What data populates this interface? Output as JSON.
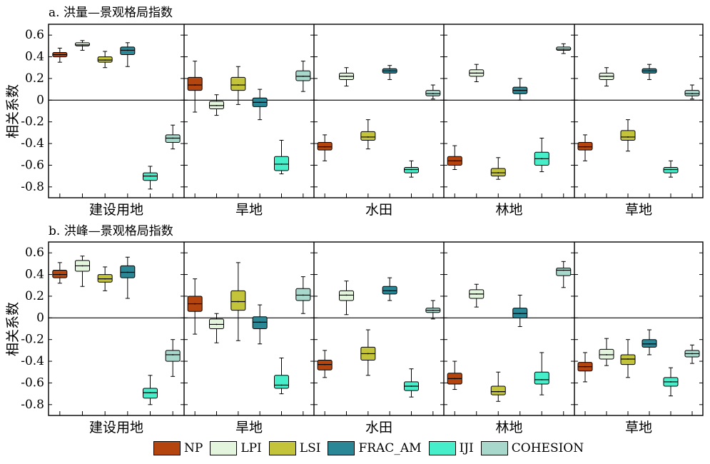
{
  "colors": {
    "NP": "#B5450F",
    "LPI": "#E4F5DE",
    "LSI": "#C3C43A",
    "FRAC_AM": "#2A8795",
    "IJI": "#46EEC9",
    "COHESION": "#A8D7CB"
  },
  "legend": [
    {
      "key": "NP",
      "label": "NP"
    },
    {
      "key": "LPI",
      "label": "LPI"
    },
    {
      "key": "LSI",
      "label": "LSI"
    },
    {
      "key": "FRAC_AM",
      "label": "FRAC_AM"
    },
    {
      "key": "IJI",
      "label": "IJI"
    },
    {
      "key": "COHESION",
      "label": "COHESION"
    }
  ],
  "chart_data": [
    {
      "type": "boxplot",
      "title": "a. 洪量—景观格局指数",
      "ylabel": "相关系数",
      "ylim": [
        -0.9,
        0.7
      ],
      "yticks": [
        "0.6",
        "0.4",
        "0.2",
        "0",
        "-0.2",
        "-0.4",
        "-0.6",
        "-0.8"
      ],
      "groups": [
        {
          "name": "建设用地",
          "boxes": [
            {
              "metric": "NP",
              "wlow": 0.35,
              "q1": 0.4,
              "median": 0.42,
              "q3": 0.44,
              "whigh": 0.48
            },
            {
              "metric": "LPI",
              "wlow": 0.46,
              "q1": 0.5,
              "median": 0.51,
              "q3": 0.53,
              "whigh": 0.55
            },
            {
              "metric": "LSI",
              "wlow": 0.3,
              "q1": 0.35,
              "median": 0.37,
              "q3": 0.4,
              "whigh": 0.45
            },
            {
              "metric": "FRAC_AM",
              "wlow": 0.31,
              "q1": 0.42,
              "median": 0.46,
              "q3": 0.49,
              "whigh": 0.53
            },
            {
              "metric": "IJI",
              "wlow": -0.82,
              "q1": -0.74,
              "median": -0.7,
              "q3": -0.67,
              "whigh": -0.61
            },
            {
              "metric": "COHESION",
              "wlow": -0.45,
              "q1": -0.39,
              "median": -0.35,
              "q3": -0.32,
              "whigh": -0.23
            }
          ]
        },
        {
          "name": "旱地",
          "boxes": [
            {
              "metric": "NP",
              "wlow": -0.11,
              "q1": 0.09,
              "median": 0.14,
              "q3": 0.21,
              "whigh": 0.36
            },
            {
              "metric": "LPI",
              "wlow": -0.14,
              "q1": -0.08,
              "median": -0.05,
              "q3": -0.01,
              "whigh": 0.05
            },
            {
              "metric": "LSI",
              "wlow": -0.04,
              "q1": 0.09,
              "median": 0.14,
              "q3": 0.21,
              "whigh": 0.31
            },
            {
              "metric": "FRAC_AM",
              "wlow": -0.18,
              "q1": -0.06,
              "median": -0.02,
              "q3": 0.02,
              "whigh": 0.1
            },
            {
              "metric": "IJI",
              "wlow": -0.68,
              "q1": -0.65,
              "median": -0.59,
              "q3": -0.52,
              "whigh": -0.37
            },
            {
              "metric": "COHESION",
              "wlow": 0.08,
              "q1": 0.18,
              "median": 0.22,
              "q3": 0.27,
              "whigh": 0.36
            }
          ]
        },
        {
          "name": "水田",
          "boxes": [
            {
              "metric": "NP",
              "wlow": -0.56,
              "q1": -0.46,
              "median": -0.43,
              "q3": -0.39,
              "whigh": -0.32
            },
            {
              "metric": "LPI",
              "wlow": 0.13,
              "q1": 0.19,
              "median": 0.22,
              "q3": 0.25,
              "whigh": 0.3
            },
            {
              "metric": "LSI",
              "wlow": -0.45,
              "q1": -0.37,
              "median": -0.34,
              "q3": -0.29,
              "whigh": -0.18
            },
            {
              "metric": "FRAC_AM",
              "wlow": 0.19,
              "q1": 0.25,
              "median": 0.27,
              "q3": 0.29,
              "whigh": 0.32
            },
            {
              "metric": "IJI",
              "wlow": -0.71,
              "q1": -0.67,
              "median": -0.64,
              "q3": -0.62,
              "whigh": -0.56
            },
            {
              "metric": "COHESION",
              "wlow": 0.01,
              "q1": 0.04,
              "median": 0.06,
              "q3": 0.09,
              "whigh": 0.14
            }
          ]
        },
        {
          "name": "林地",
          "boxes": [
            {
              "metric": "NP",
              "wlow": -0.64,
              "q1": -0.6,
              "median": -0.56,
              "q3": -0.52,
              "whigh": -0.42
            },
            {
              "metric": "LPI",
              "wlow": 0.17,
              "q1": 0.22,
              "median": 0.25,
              "q3": 0.28,
              "whigh": 0.33
            },
            {
              "metric": "LSI",
              "wlow": -0.73,
              "q1": -0.7,
              "median": -0.67,
              "q3": -0.63,
              "whigh": -0.53
            },
            {
              "metric": "FRAC_AM",
              "wlow": 0.0,
              "q1": 0.06,
              "median": 0.09,
              "q3": 0.12,
              "whigh": 0.2
            },
            {
              "metric": "IJI",
              "wlow": -0.66,
              "q1": -0.6,
              "median": -0.54,
              "q3": -0.48,
              "whigh": -0.35
            },
            {
              "metric": "COHESION",
              "wlow": 0.43,
              "q1": 0.46,
              "median": 0.47,
              "q3": 0.49,
              "whigh": 0.52
            }
          ]
        },
        {
          "name": "草地",
          "boxes": [
            {
              "metric": "NP",
              "wlow": -0.56,
              "q1": -0.46,
              "median": -0.43,
              "q3": -0.39,
              "whigh": -0.32
            },
            {
              "metric": "LPI",
              "wlow": 0.13,
              "q1": 0.19,
              "median": 0.22,
              "q3": 0.25,
              "whigh": 0.3
            },
            {
              "metric": "LSI",
              "wlow": -0.47,
              "q1": -0.37,
              "median": -0.34,
              "q3": -0.28,
              "whigh": -0.18
            },
            {
              "metric": "FRAC_AM",
              "wlow": 0.19,
              "q1": 0.25,
              "median": 0.27,
              "q3": 0.29,
              "whigh": 0.33
            },
            {
              "metric": "IJI",
              "wlow": -0.71,
              "q1": -0.67,
              "median": -0.64,
              "q3": -0.62,
              "whigh": -0.56
            },
            {
              "metric": "COHESION",
              "wlow": 0.01,
              "q1": 0.04,
              "median": 0.06,
              "q3": 0.09,
              "whigh": 0.14
            }
          ]
        }
      ]
    },
    {
      "type": "boxplot",
      "title": "b. 洪峰—景观格局指数",
      "ylabel": "相关系数",
      "ylim": [
        -0.9,
        0.7
      ],
      "yticks": [
        "0.6",
        "0.4",
        "0.2",
        "0",
        "-0.2",
        "-0.4",
        "-0.6",
        "-0.8"
      ],
      "groups": [
        {
          "name": "建设用地",
          "boxes": [
            {
              "metric": "NP",
              "wlow": 0.32,
              "q1": 0.37,
              "median": 0.4,
              "q3": 0.44,
              "whigh": 0.51
            },
            {
              "metric": "LPI",
              "wlow": 0.29,
              "q1": 0.43,
              "median": 0.48,
              "q3": 0.53,
              "whigh": 0.57
            },
            {
              "metric": "LSI",
              "wlow": 0.25,
              "q1": 0.33,
              "median": 0.36,
              "q3": 0.4,
              "whigh": 0.47
            },
            {
              "metric": "FRAC_AM",
              "wlow": 0.18,
              "q1": 0.37,
              "median": 0.42,
              "q3": 0.48,
              "whigh": 0.56
            },
            {
              "metric": "IJI",
              "wlow": -0.8,
              "q1": -0.74,
              "median": -0.69,
              "q3": -0.65,
              "whigh": -0.53
            },
            {
              "metric": "COHESION",
              "wlow": -0.54,
              "q1": -0.4,
              "median": -0.34,
              "q3": -0.3,
              "whigh": -0.2
            }
          ]
        },
        {
          "name": "旱地",
          "boxes": [
            {
              "metric": "NP",
              "wlow": -0.15,
              "q1": 0.06,
              "median": 0.13,
              "q3": 0.2,
              "whigh": 0.36
            },
            {
              "metric": "LPI",
              "wlow": -0.23,
              "q1": -0.1,
              "median": -0.06,
              "q3": -0.01,
              "whigh": 0.04
            },
            {
              "metric": "LSI",
              "wlow": -0.21,
              "q1": 0.07,
              "median": 0.15,
              "q3": 0.25,
              "whigh": 0.51
            },
            {
              "metric": "FRAC_AM",
              "wlow": -0.24,
              "q1": -0.1,
              "median": -0.04,
              "q3": 0.01,
              "whigh": 0.12
            },
            {
              "metric": "IJI",
              "wlow": -0.7,
              "q1": -0.65,
              "median": -0.62,
              "q3": -0.53,
              "whigh": -0.37
            },
            {
              "metric": "COHESION",
              "wlow": 0.04,
              "q1": 0.16,
              "median": 0.21,
              "q3": 0.27,
              "whigh": 0.38
            }
          ]
        },
        {
          "name": "水田",
          "boxes": [
            {
              "metric": "NP",
              "wlow": -0.55,
              "q1": -0.48,
              "median": -0.43,
              "q3": -0.39,
              "whigh": -0.3
            },
            {
              "metric": "LPI",
              "wlow": 0.03,
              "q1": 0.16,
              "median": 0.21,
              "q3": 0.25,
              "whigh": 0.34
            },
            {
              "metric": "LSI",
              "wlow": -0.53,
              "q1": -0.39,
              "median": -0.33,
              "q3": -0.27,
              "whigh": -0.11
            },
            {
              "metric": "FRAC_AM",
              "wlow": 0.16,
              "q1": 0.22,
              "median": 0.25,
              "q3": 0.29,
              "whigh": 0.37
            },
            {
              "metric": "IJI",
              "wlow": -0.73,
              "q1": -0.67,
              "median": -0.63,
              "q3": -0.59,
              "whigh": -0.47
            },
            {
              "metric": "COHESION",
              "wlow": -0.01,
              "q1": 0.05,
              "median": 0.07,
              "q3": 0.09,
              "whigh": 0.16
            }
          ]
        },
        {
          "name": "林地",
          "boxes": [
            {
              "metric": "NP",
              "wlow": -0.66,
              "q1": -0.61,
              "median": -0.56,
              "q3": -0.51,
              "whigh": -0.4
            },
            {
              "metric": "LPI",
              "wlow": 0.1,
              "q1": 0.18,
              "median": 0.22,
              "q3": 0.26,
              "whigh": 0.31
            },
            {
              "metric": "LSI",
              "wlow": -0.77,
              "q1": -0.71,
              "median": -0.68,
              "q3": -0.63,
              "whigh": -0.5
            },
            {
              "metric": "FRAC_AM",
              "wlow": -0.08,
              "q1": 0.0,
              "median": 0.04,
              "q3": 0.09,
              "whigh": 0.21
            },
            {
              "metric": "IJI",
              "wlow": -0.71,
              "q1": -0.61,
              "median": -0.57,
              "q3": -0.5,
              "whigh": -0.32
            },
            {
              "metric": "COHESION",
              "wlow": 0.28,
              "q1": 0.39,
              "median": 0.44,
              "q3": 0.46,
              "whigh": 0.52
            }
          ]
        },
        {
          "name": "草地",
          "boxes": [
            {
              "metric": "NP",
              "wlow": -0.59,
              "q1": -0.49,
              "median": -0.45,
              "q3": -0.41,
              "whigh": -0.32
            },
            {
              "metric": "LPI",
              "wlow": -0.44,
              "q1": -0.38,
              "median": -0.34,
              "q3": -0.29,
              "whigh": -0.19
            },
            {
              "metric": "LSI",
              "wlow": -0.55,
              "q1": -0.43,
              "median": -0.38,
              "q3": -0.34,
              "whigh": -0.2
            },
            {
              "metric": "FRAC_AM",
              "wlow": -0.34,
              "q1": -0.27,
              "median": -0.24,
              "q3": -0.2,
              "whigh": -0.11
            },
            {
              "metric": "IJI",
              "wlow": -0.72,
              "q1": -0.63,
              "median": -0.59,
              "q3": -0.55,
              "whigh": -0.46
            },
            {
              "metric": "COHESION",
              "wlow": -0.42,
              "q1": -0.36,
              "median": -0.33,
              "q3": -0.3,
              "whigh": -0.25
            }
          ]
        }
      ]
    }
  ]
}
